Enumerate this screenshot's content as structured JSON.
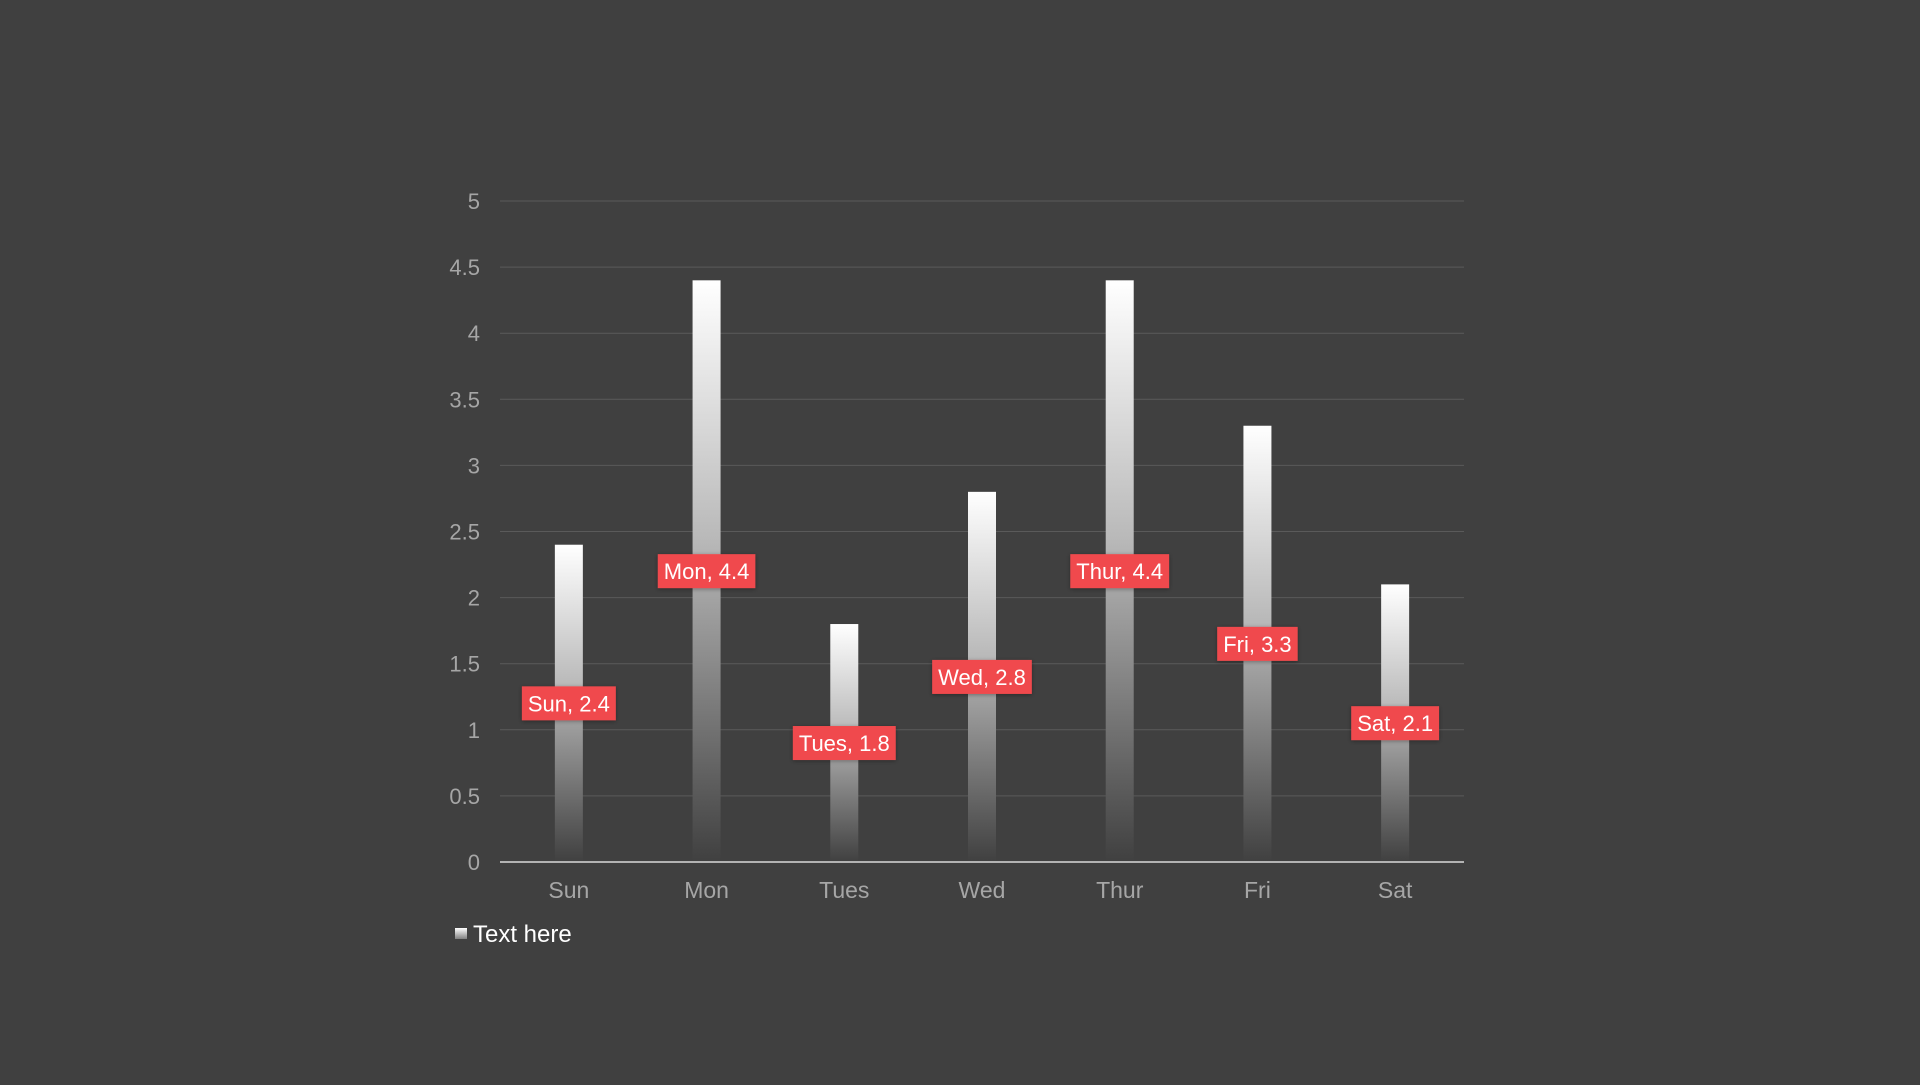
{
  "colors": {
    "background": "#404040",
    "gridline": "#5a5a5a",
    "axis_line": "#d9d9d9",
    "tick_label": "#a6a6a6",
    "bar_top": "#ffffff",
    "bar_bottom": "#404040",
    "data_label_bg": "#f04a4d",
    "data_label_text": "#ffffff",
    "legend_text": "#ffffff"
  },
  "chart_data": {
    "type": "bar",
    "categories": [
      "Sun",
      "Mon",
      "Tues",
      "Wed",
      "Thur",
      "Fri",
      "Sat"
    ],
    "series": [
      {
        "name": "Text here",
        "values": [
          2.4,
          4.4,
          1.8,
          2.8,
          4.4,
          3.3,
          2.1
        ]
      }
    ],
    "data_labels": [
      "Sun, 2.4",
      "Mon, 4.4",
      "Tues, 1.8",
      "Wed, 2.8",
      "Thur, 4.4",
      "Fri, 3.3",
      "Sat, 2.1"
    ],
    "yticks": [
      "0",
      "0.5",
      "1",
      "1.5",
      "2",
      "2.5",
      "3",
      "3.5",
      "4",
      "4.5",
      "5"
    ],
    "ylim": [
      0,
      5
    ],
    "ytick_step": 0.5,
    "grid": true,
    "legend": "bottom-left",
    "bar_fill": "vertical-gradient-white-to-background",
    "data_label_position": "center"
  }
}
